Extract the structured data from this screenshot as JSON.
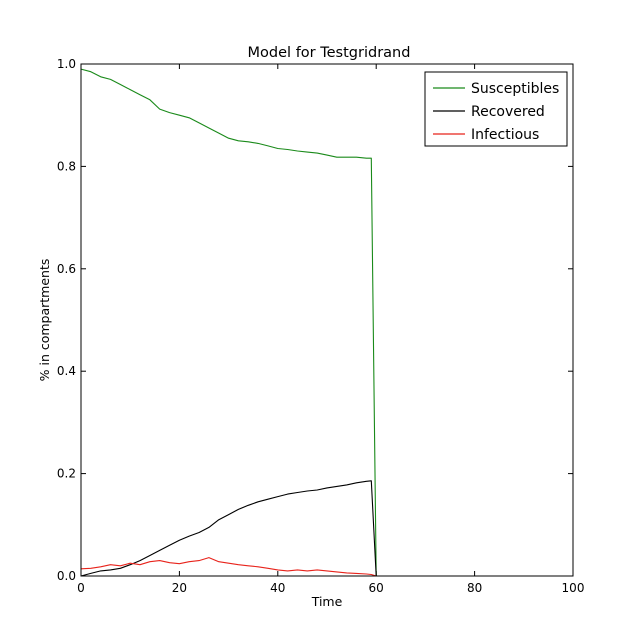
{
  "chart_data": {
    "type": "line",
    "title": "Model for Testgridrand",
    "xlabel": "Time",
    "ylabel": "% in compartments",
    "xlim": [
      0,
      100
    ],
    "ylim": [
      0,
      1.0
    ],
    "xticks": [
      "0",
      "20",
      "40",
      "60",
      "80",
      "100"
    ],
    "yticks": [
      "0.0",
      "0.2",
      "0.4",
      "0.6",
      "0.8",
      "1.0"
    ],
    "grid": false,
    "legend_position": "top-right",
    "series": [
      {
        "name": "Susceptibles",
        "color": "#1a8a1a",
        "points": [
          [
            0,
            0.99
          ],
          [
            2,
            0.985
          ],
          [
            4,
            0.975
          ],
          [
            6,
            0.97
          ],
          [
            8,
            0.96
          ],
          [
            10,
            0.95
          ],
          [
            12,
            0.94
          ],
          [
            14,
            0.93
          ],
          [
            16,
            0.912
          ],
          [
            18,
            0.905
          ],
          [
            20,
            0.9
          ],
          [
            22,
            0.895
          ],
          [
            24,
            0.885
          ],
          [
            26,
            0.875
          ],
          [
            28,
            0.865
          ],
          [
            30,
            0.855
          ],
          [
            32,
            0.85
          ],
          [
            34,
            0.848
          ],
          [
            36,
            0.845
          ],
          [
            38,
            0.84
          ],
          [
            40,
            0.835
          ],
          [
            42,
            0.833
          ],
          [
            44,
            0.83
          ],
          [
            46,
            0.828
          ],
          [
            48,
            0.826
          ],
          [
            50,
            0.822
          ],
          [
            52,
            0.818
          ],
          [
            54,
            0.818
          ],
          [
            56,
            0.818
          ],
          [
            58,
            0.816
          ],
          [
            59,
            0.816
          ],
          [
            60,
            0
          ],
          [
            62,
            0
          ],
          [
            100,
            0
          ]
        ]
      },
      {
        "name": "Recovered",
        "color": "#000000",
        "points": [
          [
            0,
            0
          ],
          [
            2,
            0.005
          ],
          [
            4,
            0.01
          ],
          [
            6,
            0.012
          ],
          [
            8,
            0.015
          ],
          [
            10,
            0.022
          ],
          [
            12,
            0.03
          ],
          [
            14,
            0.04
          ],
          [
            16,
            0.05
          ],
          [
            18,
            0.06
          ],
          [
            20,
            0.07
          ],
          [
            22,
            0.078
          ],
          [
            24,
            0.085
          ],
          [
            26,
            0.095
          ],
          [
            28,
            0.11
          ],
          [
            30,
            0.12
          ],
          [
            32,
            0.13
          ],
          [
            34,
            0.138
          ],
          [
            36,
            0.145
          ],
          [
            38,
            0.15
          ],
          [
            40,
            0.155
          ],
          [
            42,
            0.16
          ],
          [
            44,
            0.163
          ],
          [
            46,
            0.166
          ],
          [
            48,
            0.168
          ],
          [
            50,
            0.172
          ],
          [
            52,
            0.175
          ],
          [
            54,
            0.178
          ],
          [
            56,
            0.182
          ],
          [
            58,
            0.185
          ],
          [
            59,
            0.186
          ],
          [
            60,
            0
          ],
          [
            62,
            0
          ],
          [
            100,
            0
          ]
        ]
      },
      {
        "name": "Infectious",
        "color": "#e8231b",
        "points": [
          [
            0,
            0.014
          ],
          [
            2,
            0.015
          ],
          [
            4,
            0.018
          ],
          [
            6,
            0.022
          ],
          [
            8,
            0.02
          ],
          [
            10,
            0.025
          ],
          [
            12,
            0.022
          ],
          [
            14,
            0.028
          ],
          [
            16,
            0.03
          ],
          [
            18,
            0.026
          ],
          [
            20,
            0.024
          ],
          [
            22,
            0.028
          ],
          [
            24,
            0.03
          ],
          [
            26,
            0.036
          ],
          [
            28,
            0.028
          ],
          [
            30,
            0.025
          ],
          [
            32,
            0.022
          ],
          [
            34,
            0.02
          ],
          [
            36,
            0.018
          ],
          [
            38,
            0.015
          ],
          [
            40,
            0.012
          ],
          [
            42,
            0.01
          ],
          [
            44,
            0.012
          ],
          [
            46,
            0.01
          ],
          [
            48,
            0.012
          ],
          [
            50,
            0.01
          ],
          [
            52,
            0.008
          ],
          [
            54,
            0.006
          ],
          [
            56,
            0.005
          ],
          [
            58,
            0.004
          ],
          [
            59,
            0.003
          ],
          [
            60,
            0
          ],
          [
            62,
            0
          ],
          [
            100,
            0
          ]
        ]
      }
    ]
  }
}
